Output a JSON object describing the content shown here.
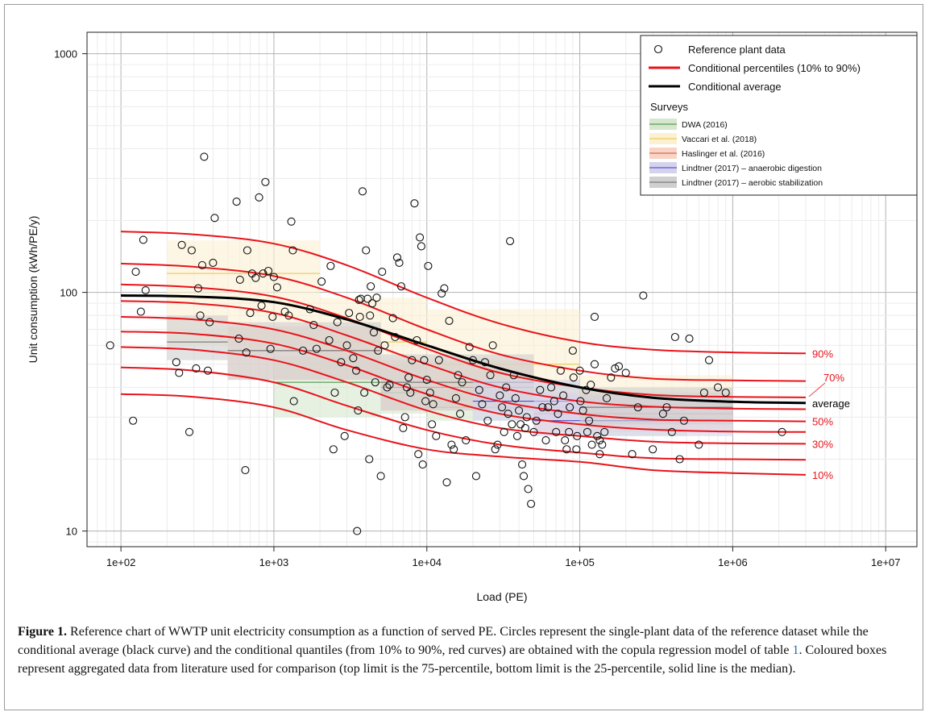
{
  "caption": {
    "label": "Figure 1.",
    "part1": " Reference chart of WWTP unit electricity consumption as a function of served PE. Circles represent the single-plant data of the reference dataset while the conditional average (black curve) and the conditional quantiles (from 10% to 90%, red curves) are obtained with the copula regression model of table ",
    "table_ref": "1",
    "part2": ". Coloured boxes represent aggregated data from literature used for comparison (top limit is the 75-percentile, bottom limit is the 25-percentile, solid line is the median)."
  },
  "chart_data": {
    "type": "scatter",
    "xlabel": "Load (PE)",
    "ylabel": "Unit consumption (kWh/PE/y)",
    "xscale": "log",
    "yscale": "log",
    "xlim": [
      60,
      16000000
    ],
    "ylim": [
      8.6,
      1230
    ],
    "x_ticks": [
      100,
      1000,
      10000,
      100000,
      1000000,
      10000000
    ],
    "x_tick_labels": [
      "1e+02",
      "1e+03",
      "1e+04",
      "1e+05",
      "1e+06",
      "1e+07"
    ],
    "y_ticks": [
      10,
      100,
      1000
    ],
    "y_tick_labels": [
      "10",
      "100",
      "1000"
    ],
    "grid": true,
    "legend": {
      "placement": "top-right",
      "entries": [
        {
          "label": "Reference plant data",
          "kind": "circle"
        },
        {
          "label": "Conditional percentiles (10% to 90%)",
          "kind": "line",
          "color": "#e8141b"
        },
        {
          "label": "Conditional average",
          "kind": "line",
          "color": "#000000"
        }
      ],
      "surveys_title": "Surveys",
      "surveys": [
        {
          "label": "DWA (2016)",
          "fill": "#d6e7cd",
          "line": "#3c8a3c"
        },
        {
          "label": "Vaccari et al. (2018)",
          "fill": "#fbf0d2",
          "line": "#e8c33a"
        },
        {
          "label": "Haslinger et al. (2016)",
          "fill": "#f7d4c6",
          "line": "#d94b3a"
        },
        {
          "label": "Lindtner (2017) – anaerobic digestion",
          "fill": "#d5d3ec",
          "line": "#3a3ad0"
        },
        {
          "label": "Lindtner (2017) – aerobic stabilization",
          "fill": "#cfcfcf",
          "line": "#666666"
        }
      ]
    },
    "curve_x": [
      100,
      300,
      1000,
      3000,
      10000,
      30000,
      100000,
      300000,
      1000000,
      3000000
    ],
    "percentile_curves": [
      {
        "name": "10%",
        "labeled": true,
        "y": [
          37.5,
          36.5,
          33,
          26.5,
          22,
          20.5,
          19.5,
          18,
          17.5,
          17.2
        ]
      },
      {
        "name": "20%",
        "labeled": false,
        "y": [
          48.5,
          47,
          42,
          33.5,
          26.5,
          23,
          21.3,
          20.2,
          20,
          19.9
        ]
      },
      {
        "name": "30%",
        "labeled": true,
        "y": [
          59,
          57.5,
          52,
          42,
          32,
          27,
          25,
          23.7,
          23.3,
          23.2
        ]
      },
      {
        "name": "40%",
        "labeled": false,
        "y": [
          68.5,
          67,
          61,
          49.5,
          37.5,
          31,
          28,
          26.6,
          26.1,
          26
        ]
      },
      {
        "name": "50%",
        "labeled": true,
        "y": [
          79,
          77,
          70,
          57,
          43,
          35,
          31,
          29.3,
          29,
          28.8
        ]
      },
      {
        "name": "60%",
        "labeled": false,
        "y": [
          92,
          90,
          82,
          66,
          50,
          40,
          35,
          33.2,
          32.6,
          32.4
        ]
      },
      {
        "name": "70%",
        "labeled": true,
        "y": [
          108,
          105,
          96,
          78,
          58,
          46,
          40,
          37.2,
          36.5,
          36.3
        ]
      },
      {
        "name": "80%",
        "labeled": false,
        "y": [
          132,
          128,
          117,
          95,
          70,
          55,
          47,
          43.5,
          42.8,
          42.5
        ]
      },
      {
        "name": "90%",
        "labeled": true,
        "y": [
          180,
          175,
          160,
          130,
          95,
          74,
          62,
          57.5,
          56,
          55.5
        ]
      }
    ],
    "average_curve": {
      "name": "average",
      "y": [
        97,
        96,
        91,
        77,
        60,
        48,
        40,
        36.2,
        34.8,
        34.4
      ]
    },
    "survey_boxes": [
      {
        "survey": "Vaccari et al. (2018)",
        "x": [
          200,
          2000
        ],
        "q25": 60,
        "median": 120,
        "q75": 165
      },
      {
        "survey": "Vaccari et al. (2018)",
        "x": [
          2000,
          10000
        ],
        "q25": 48,
        "median": 62,
        "q75": 95
      },
      {
        "survey": "Vaccari et al. (2018)",
        "x": [
          10000,
          100000
        ],
        "q25": 35,
        "median": 50,
        "q75": 85
      },
      {
        "survey": "Vaccari et al. (2018)",
        "x": [
          100000,
          1000000
        ],
        "q25": 27,
        "median": 34,
        "q75": 45
      },
      {
        "survey": "DWA (2016)",
        "x": [
          1000,
          5000
        ],
        "q25": 30,
        "median": 42,
        "q75": 54
      },
      {
        "survey": "DWA (2016)",
        "x": [
          5000,
          10000
        ],
        "q25": 31,
        "median": 38,
        "q75": 50
      },
      {
        "survey": "DWA (2016)",
        "x": [
          10000,
          100000
        ],
        "q25": 29,
        "median": 33,
        "q75": 42
      },
      {
        "survey": "DWA (2016)",
        "x": [
          100000,
          500000
        ],
        "q25": 25,
        "median": 30,
        "q75": 36
      },
      {
        "survey": "Haslinger et al. (2016)",
        "x": [
          500,
          5000
        ],
        "q25": 43,
        "median": 57,
        "q75": 72
      },
      {
        "survey": "Haslinger et al. (2016)",
        "x": [
          5000,
          50000
        ],
        "q25": 32,
        "median": 40,
        "q75": 52
      },
      {
        "survey": "Haslinger et al. (2016)",
        "x": [
          50000,
          1000000
        ],
        "q25": 26,
        "median": 31,
        "q75": 38
      },
      {
        "survey": "Lindtner (2017) – aerobic stabilization",
        "x": [
          200,
          500
        ],
        "q25": 52,
        "median": 62,
        "q75": 80
      },
      {
        "survey": "Lindtner (2017) – aerobic stabilization",
        "x": [
          500,
          5000
        ],
        "q25": 43,
        "median": 57,
        "q75": 75
      },
      {
        "survey": "Lindtner (2017) – aerobic stabilization",
        "x": [
          5000,
          50000
        ],
        "q25": 32,
        "median": 42,
        "q75": 55
      },
      {
        "survey": "Lindtner (2017) – anaerobic digestion",
        "x": [
          20000,
          100000
        ],
        "q25": 29,
        "median": 35,
        "q75": 43
      },
      {
        "survey": "Lindtner (2017) – anaerobic digestion",
        "x": [
          50000,
          1000000
        ],
        "q25": 25,
        "median": 29,
        "q75": 37
      },
      {
        "survey": "Lindtner (2017) – aerobic stabilization",
        "x": [
          100000,
          1000000
        ],
        "q25": 28,
        "median": 33,
        "q75": 40
      }
    ],
    "points": [
      [
        85,
        60
      ],
      [
        120,
        29
      ],
      [
        125,
        122
      ],
      [
        135,
        83
      ],
      [
        140,
        166
      ],
      [
        145,
        102
      ],
      [
        230,
        51
      ],
      [
        240,
        46
      ],
      [
        250,
        158
      ],
      [
        280,
        26
      ],
      [
        290,
        150
      ],
      [
        310,
        48
      ],
      [
        320,
        104
      ],
      [
        330,
        80
      ],
      [
        340,
        130
      ],
      [
        350,
        370
      ],
      [
        370,
        47
      ],
      [
        380,
        75
      ],
      [
        400,
        133
      ],
      [
        410,
        205
      ],
      [
        570,
        240
      ],
      [
        590,
        64
      ],
      [
        600,
        113
      ],
      [
        650,
        18
      ],
      [
        660,
        56
      ],
      [
        670,
        150
      ],
      [
        700,
        82
      ],
      [
        720,
        120
      ],
      [
        760,
        115
      ],
      [
        800,
        250
      ],
      [
        830,
        88
      ],
      [
        850,
        120
      ],
      [
        880,
        290
      ],
      [
        920,
        123
      ],
      [
        950,
        58
      ],
      [
        980,
        79
      ],
      [
        1000,
        116
      ],
      [
        1050,
        105
      ],
      [
        1180,
        83
      ],
      [
        1250,
        80
      ],
      [
        1300,
        198
      ],
      [
        1330,
        150
      ],
      [
        1350,
        35
      ],
      [
        1550,
        57
      ],
      [
        1720,
        85
      ],
      [
        1820,
        73
      ],
      [
        1900,
        58
      ],
      [
        2050,
        111
      ],
      [
        2300,
        63
      ],
      [
        2350,
        129
      ],
      [
        2450,
        22
      ],
      [
        2500,
        38
      ],
      [
        2600,
        75
      ],
      [
        2750,
        51
      ],
      [
        2900,
        25
      ],
      [
        3000,
        60
      ],
      [
        3100,
        82
      ],
      [
        3300,
        53
      ],
      [
        3450,
        47
      ],
      [
        3500,
        10
      ],
      [
        3550,
        32
      ],
      [
        3600,
        93
      ],
      [
        3650,
        79
      ],
      [
        3700,
        94
      ],
      [
        3800,
        265
      ],
      [
        3900,
        38
      ],
      [
        4000,
        150
      ],
      [
        4100,
        94
      ],
      [
        4200,
        20
      ],
      [
        4250,
        80
      ],
      [
        4300,
        106
      ],
      [
        4400,
        90
      ],
      [
        4500,
        68
      ],
      [
        4600,
        42
      ],
      [
        4700,
        95
      ],
      [
        4800,
        57
      ],
      [
        5000,
        17
      ],
      [
        5100,
        122
      ],
      [
        5300,
        60
      ],
      [
        5500,
        40
      ],
      [
        5700,
        41
      ],
      [
        6000,
        78
      ],
      [
        6200,
        65
      ],
      [
        6400,
        140
      ],
      [
        6600,
        133
      ],
      [
        6800,
        106
      ],
      [
        7000,
        27
      ],
      [
        7200,
        30
      ],
      [
        7400,
        40
      ],
      [
        7600,
        44
      ],
      [
        7800,
        38
      ],
      [
        8000,
        52
      ],
      [
        8300,
        236
      ],
      [
        8600,
        63
      ],
      [
        8800,
        21
      ],
      [
        9000,
        170
      ],
      [
        9200,
        156
      ],
      [
        9400,
        19
      ],
      [
        9600,
        52
      ],
      [
        9800,
        35
      ],
      [
        10000,
        43
      ],
      [
        10200,
        129
      ],
      [
        10500,
        38
      ],
      [
        10800,
        28
      ],
      [
        11000,
        34
      ],
      [
        11500,
        25
      ],
      [
        12000,
        52
      ],
      [
        12500,
        99
      ],
      [
        13000,
        104
      ],
      [
        13500,
        16
      ],
      [
        14000,
        76
      ],
      [
        14500,
        23
      ],
      [
        15000,
        22
      ],
      [
        15500,
        36
      ],
      [
        16000,
        45
      ],
      [
        16500,
        31
      ],
      [
        17000,
        42
      ],
      [
        18000,
        24
      ],
      [
        19000,
        59
      ],
      [
        20000,
        52
      ],
      [
        21000,
        17
      ],
      [
        22000,
        39
      ],
      [
        23000,
        34
      ],
      [
        24000,
        51
      ],
      [
        25000,
        29
      ],
      [
        26000,
        45
      ],
      [
        27000,
        60
      ],
      [
        28000,
        22
      ],
      [
        29000,
        23
      ],
      [
        30000,
        37
      ],
      [
        31000,
        33
      ],
      [
        32000,
        26
      ],
      [
        33000,
        40
      ],
      [
        34000,
        31
      ],
      [
        35000,
        164
      ],
      [
        36000,
        28
      ],
      [
        37000,
        45
      ],
      [
        38000,
        36
      ],
      [
        39000,
        25
      ],
      [
        40000,
        32
      ],
      [
        41000,
        28
      ],
      [
        42000,
        19
      ],
      [
        43000,
        17
      ],
      [
        44000,
        27
      ],
      [
        45000,
        30
      ],
      [
        46000,
        15
      ],
      [
        48000,
        13
      ],
      [
        50000,
        26
      ],
      [
        52000,
        29
      ],
      [
        55000,
        39
      ],
      [
        57000,
        33
      ],
      [
        60000,
        24
      ],
      [
        62000,
        33
      ],
      [
        65000,
        40
      ],
      [
        68000,
        35
      ],
      [
        70000,
        26
      ],
      [
        72000,
        31
      ],
      [
        75000,
        47
      ],
      [
        78000,
        37
      ],
      [
        80000,
        24
      ],
      [
        82000,
        22
      ],
      [
        85000,
        26
      ],
      [
        90000,
        57
      ],
      [
        95000,
        22
      ],
      [
        100000,
        47
      ],
      [
        110000,
        39
      ],
      [
        115000,
        29
      ],
      [
        120000,
        23
      ],
      [
        125000,
        50
      ],
      [
        130000,
        25
      ],
      [
        135000,
        21
      ],
      [
        140000,
        23
      ],
      [
        145000,
        26
      ],
      [
        150000,
        36
      ],
      [
        160000,
        44
      ],
      [
        170000,
        48
      ],
      [
        180000,
        49
      ],
      [
        200000,
        46
      ],
      [
        220000,
        21
      ],
      [
        240000,
        33
      ],
      [
        260000,
        97
      ],
      [
        300000,
        22
      ],
      [
        350000,
        31
      ],
      [
        370000,
        33
      ],
      [
        400000,
        26
      ],
      [
        420000,
        65
      ],
      [
        450000,
        20
      ],
      [
        480000,
        29
      ],
      [
        520000,
        64
      ],
      [
        600000,
        23
      ],
      [
        650000,
        38
      ],
      [
        700000,
        52
      ],
      [
        800000,
        40
      ],
      [
        900000,
        38
      ],
      [
        2100000,
        26
      ],
      [
        86000,
        33
      ],
      [
        91000,
        44
      ],
      [
        96000,
        25
      ],
      [
        101000,
        35
      ],
      [
        105000,
        32
      ],
      [
        112000,
        26
      ],
      [
        118000,
        41
      ],
      [
        125000,
        79
      ],
      [
        135000,
        24
      ]
    ],
    "curve_labels": {
      "p90": "90%",
      "p70": "70%",
      "average": "average",
      "p50": "50%",
      "p30": "30%",
      "p10": "10%"
    }
  }
}
